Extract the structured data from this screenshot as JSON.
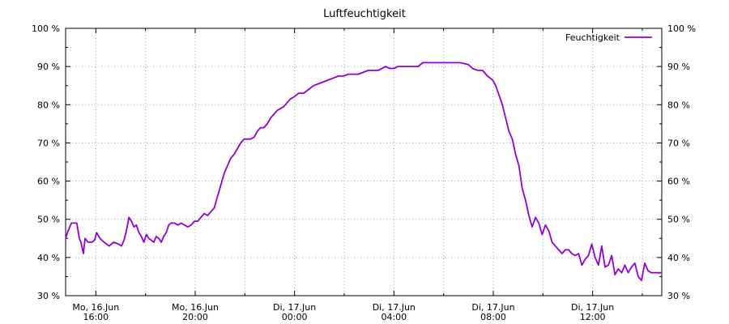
{
  "chart_data": {
    "type": "line",
    "title": "Luftfeuchtigkeit",
    "xlabel": "",
    "ylabel": "",
    "ylim": [
      30,
      100
    ],
    "y_unit": "%",
    "y_ticks": [
      "30 %",
      "40 %",
      "50 %",
      "60 %",
      "70 %",
      "80 %",
      "90 %",
      "100 %"
    ],
    "y_right_axis": true,
    "x_start": "Mo, 16.Jun 14:47",
    "x_end": "Di, 17.Jun 14:47",
    "x_ticks": [
      {
        "day": "Mo, 16.Jun",
        "time": "16:00"
      },
      {
        "day": "Mo, 16.Jun",
        "time": "20:00"
      },
      {
        "day": "Di, 17.Jun",
        "time": "00:00"
      },
      {
        "day": "Di, 17.Jun",
        "time": "04:00"
      },
      {
        "day": "Di, 17.Jun",
        "time": "08:00"
      },
      {
        "day": "Di, 17.Jun",
        "time": "12:00"
      }
    ],
    "grid": true,
    "legend_position": "top-right",
    "series": [
      {
        "name": "Feuchtigkeit",
        "color": "#9400d3",
        "points": [
          [
            "16.06. 14:47",
            45
          ],
          [
            "16.06. 14:53",
            47
          ],
          [
            "16.06. 15:01",
            49
          ],
          [
            "16.06. 15:08",
            49
          ],
          [
            "16.06. 15:14",
            49
          ],
          [
            "16.06. 15:20",
            45
          ],
          [
            "16.06. 15:24",
            44
          ],
          [
            "16.06. 15:30",
            41
          ],
          [
            "16.06. 15:34",
            45
          ],
          [
            "16.06. 15:41",
            44
          ],
          [
            "16.06. 15:51",
            44
          ],
          [
            "16.06. 15:57",
            44.5
          ],
          [
            "16.06. 16:02",
            46.5
          ],
          [
            "16.06. 16:10",
            45
          ],
          [
            "16.06. 16:20",
            44
          ],
          [
            "16.06. 16:32",
            43
          ],
          [
            "16.06. 16:43",
            44
          ],
          [
            "16.06. 16:55",
            43.5
          ],
          [
            "16.06. 17:02",
            43
          ],
          [
            "16.06. 17:08",
            44.5
          ],
          [
            "16.06. 17:14",
            47
          ],
          [
            "16.06. 17:20",
            50.5
          ],
          [
            "16.06. 17:26",
            49.5
          ],
          [
            "16.06. 17:32",
            48
          ],
          [
            "16.06. 17:38",
            48.5
          ],
          [
            "16.06. 17:44",
            46.5
          ],
          [
            "16.06. 17:50",
            45.5
          ],
          [
            "16.06. 17:56",
            44
          ],
          [
            "16.06. 18:02",
            46
          ],
          [
            "16.06. 18:08",
            45
          ],
          [
            "16.06. 18:14",
            44.5
          ],
          [
            "16.06. 18:20",
            44
          ],
          [
            "16.06. 18:26",
            45.5
          ],
          [
            "16.06. 18:32",
            45
          ],
          [
            "16.06. 18:38",
            44
          ],
          [
            "16.06. 18:44",
            45.5
          ],
          [
            "16.06. 18:50",
            46.5
          ],
          [
            "16.06. 18:56",
            48.5
          ],
          [
            "16.06. 19:02",
            49
          ],
          [
            "16.06. 19:10",
            49
          ],
          [
            "16.06. 19:18",
            48.5
          ],
          [
            "16.06. 19:26",
            49
          ],
          [
            "16.06. 19:34",
            48.5
          ],
          [
            "16.06. 19:42",
            48
          ],
          [
            "16.06. 19:50",
            48.5
          ],
          [
            "16.06. 19:58",
            49.5
          ],
          [
            "16.06. 20:06",
            49.5
          ],
          [
            "16.06. 20:14",
            50.5
          ],
          [
            "16.06. 20:22",
            51.5
          ],
          [
            "16.06. 20:30",
            51
          ],
          [
            "16.06. 20:38",
            52
          ],
          [
            "16.06. 20:46",
            53
          ],
          [
            "16.06. 20:54",
            56
          ],
          [
            "16.06. 21:02",
            59
          ],
          [
            "16.06. 21:10",
            62
          ],
          [
            "16.06. 21:18",
            64
          ],
          [
            "16.06. 21:26",
            66
          ],
          [
            "16.06. 21:34",
            67
          ],
          [
            "16.06. 21:42",
            68.5
          ],
          [
            "16.06. 21:50",
            70
          ],
          [
            "16.06. 21:58",
            71
          ],
          [
            "16.06. 22:06",
            71
          ],
          [
            "16.06. 22:14",
            71
          ],
          [
            "16.06. 22:22",
            71.5
          ],
          [
            "16.06. 22:30",
            73
          ],
          [
            "16.06. 22:38",
            74
          ],
          [
            "16.06. 22:46",
            74
          ],
          [
            "16.06. 22:54",
            75
          ],
          [
            "16.06. 23:02",
            76.5
          ],
          [
            "16.06. 23:10",
            77.5
          ],
          [
            "16.06. 23:18",
            78.5
          ],
          [
            "16.06. 23:26",
            79
          ],
          [
            "16.06. 23:34",
            79.5
          ],
          [
            "16.06. 23:42",
            80.5
          ],
          [
            "16.06. 23:50",
            81.5
          ],
          [
            "16.06. 23:58",
            82
          ],
          [
            "17.06. 00:10",
            83
          ],
          [
            "17.06. 00:22",
            83
          ],
          [
            "17.06. 00:34",
            84
          ],
          [
            "17.06. 00:46",
            85
          ],
          [
            "17.06. 00:58",
            85.5
          ],
          [
            "17.06. 01:10",
            86
          ],
          [
            "17.06. 01:22",
            86.5
          ],
          [
            "17.06. 01:34",
            87
          ],
          [
            "17.06. 01:46",
            87.5
          ],
          [
            "17.06. 01:58",
            87.5
          ],
          [
            "17.06. 02:10",
            88
          ],
          [
            "17.06. 02:34",
            88
          ],
          [
            "17.06. 02:58",
            89
          ],
          [
            "17.06. 03:22",
            89
          ],
          [
            "17.06. 03:40",
            90
          ],
          [
            "17.06. 03:50",
            89.5
          ],
          [
            "17.06. 04:00",
            89.5
          ],
          [
            "17.06. 04:10",
            90
          ],
          [
            "17.06. 04:34",
            90
          ],
          [
            "17.06. 04:58",
            90
          ],
          [
            "17.06. 05:10",
            91
          ],
          [
            "17.06. 05:40",
            91
          ],
          [
            "17.06. 06:10",
            91
          ],
          [
            "17.06. 06:40",
            91
          ],
          [
            "17.06. 07:00",
            90.5
          ],
          [
            "17.06. 07:10",
            89.5
          ],
          [
            "17.06. 07:22",
            89
          ],
          [
            "17.06. 07:34",
            89
          ],
          [
            "17.06. 07:46",
            87.5
          ],
          [
            "17.06. 07:58",
            86.5
          ],
          [
            "17.06. 08:06",
            85
          ],
          [
            "17.06. 08:14",
            82.5
          ],
          [
            "17.06. 08:22",
            80
          ],
          [
            "17.06. 08:30",
            76.5
          ],
          [
            "17.06. 08:38",
            73
          ],
          [
            "17.06. 08:46",
            71
          ],
          [
            "17.06. 08:54",
            67
          ],
          [
            "17.06. 09:02",
            64
          ],
          [
            "17.06. 09:10",
            58
          ],
          [
            "17.06. 09:18",
            55
          ],
          [
            "17.06. 09:26",
            51
          ],
          [
            "17.06. 09:34",
            48
          ],
          [
            "17.06. 09:42",
            50.5
          ],
          [
            "17.06. 09:50",
            49
          ],
          [
            "17.06. 09:58",
            46
          ],
          [
            "17.06. 10:06",
            48.5
          ],
          [
            "17.06. 10:14",
            47
          ],
          [
            "17.06. 10:22",
            44
          ],
          [
            "17.06. 10:30",
            43
          ],
          [
            "17.06. 10:38",
            42
          ],
          [
            "17.06. 10:46",
            41
          ],
          [
            "17.06. 10:54",
            42
          ],
          [
            "17.06. 11:02",
            42
          ],
          [
            "17.06. 11:10",
            41
          ],
          [
            "17.06. 11:18",
            40.5
          ],
          [
            "17.06. 11:26",
            41
          ],
          [
            "17.06. 11:34",
            38
          ],
          [
            "17.06. 11:42",
            39.5
          ],
          [
            "17.06. 11:50",
            40.5
          ],
          [
            "17.06. 11:58",
            43.5
          ],
          [
            "17.06. 12:06",
            40
          ],
          [
            "17.06. 12:14",
            38
          ],
          [
            "17.06. 12:22",
            43
          ],
          [
            "17.06. 12:30",
            37.5
          ],
          [
            "17.06. 12:38",
            38
          ],
          [
            "17.06. 12:46",
            40.5
          ],
          [
            "17.06. 12:54",
            35.5
          ],
          [
            "17.06. 13:02",
            37
          ],
          [
            "17.06. 13:10",
            36
          ],
          [
            "17.06. 13:18",
            38
          ],
          [
            "17.06. 13:26",
            36
          ],
          [
            "17.06. 13:34",
            37.5
          ],
          [
            "17.06. 13:42",
            38.5
          ],
          [
            "17.06. 13:50",
            35
          ],
          [
            "17.06. 13:58",
            34
          ],
          [
            "17.06. 14:06",
            38.5
          ],
          [
            "17.06. 14:14",
            36.5
          ],
          [
            "17.06. 14:22",
            36
          ],
          [
            "17.06. 14:30",
            36
          ],
          [
            "17.06. 14:40",
            36
          ],
          [
            "17.06. 14:47",
            36
          ]
        ]
      }
    ]
  }
}
